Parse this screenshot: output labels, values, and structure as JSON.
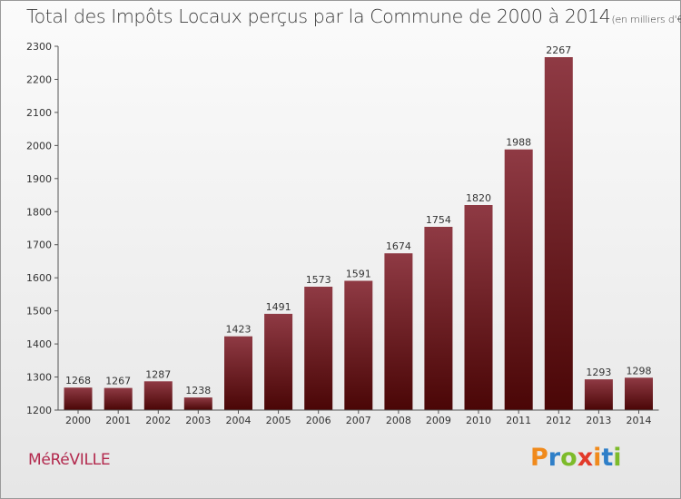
{
  "header": {
    "title": "Total des Impôts Locaux perçus par la Commune de 2000 à 2014",
    "subtitle": "(en milliers d'€)"
  },
  "footer": {
    "commune": "MéRéVILLE",
    "logo": {
      "letters": [
        "P",
        "r",
        "o",
        "x",
        "i",
        "t",
        "i"
      ],
      "colors": [
        "#f08a1c",
        "#2f7fc8",
        "#7dbb2a",
        "#e23a2a",
        "#f08a1c",
        "#2f7fc8",
        "#7dbb2a"
      ]
    }
  },
  "colors": {
    "bar_top": "#8f3a44",
    "bar_bottom": "#4a0606",
    "axis": "#555555"
  },
  "chart_data": {
    "type": "bar",
    "title": "Total des Impôts Locaux perçus par la Commune de 2000 à 2014",
    "subtitle": "(en milliers d'€)",
    "xlabel": "",
    "ylabel": "",
    "categories": [
      "2000",
      "2001",
      "2002",
      "2003",
      "2004",
      "2005",
      "2006",
      "2007",
      "2008",
      "2009",
      "2010",
      "2011",
      "2012",
      "2013",
      "2014"
    ],
    "values": [
      1268,
      1267,
      1287,
      1238,
      1423,
      1491,
      1573,
      1591,
      1674,
      1754,
      1820,
      1988,
      2267,
      1293,
      1298
    ],
    "ylim": [
      1200,
      2300
    ],
    "yticks": [
      1200,
      1300,
      1400,
      1500,
      1600,
      1700,
      1800,
      1900,
      2000,
      2100,
      2200,
      2300
    ],
    "grid": false,
    "data_labels": true
  }
}
